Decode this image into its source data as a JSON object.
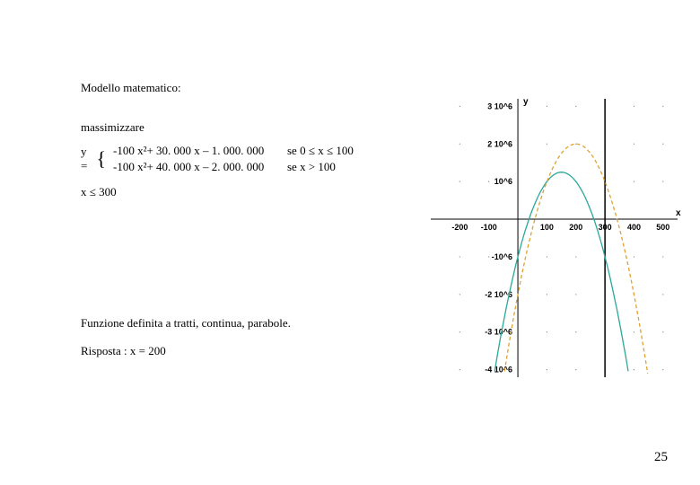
{
  "page_number": "25",
  "title": "Modello matematico:",
  "subtitle": "massimizzare",
  "equation": {
    "lhs": "y =",
    "lines": [
      {
        "expr": "-100 x²+ 30. 000 x – 1. 000. 000",
        "cond": "se 0 ≤ x ≤ 100"
      },
      {
        "expr": "-100 x²+ 40. 000 x – 2. 000. 000",
        "cond": "se x > 100"
      }
    ]
  },
  "constraint": "x ≤ 300",
  "description": "Funzione definita a tratti, continua, parabole.",
  "answer": " Risposta : x = 200",
  "chart": {
    "type": "line",
    "background_color": "#ffffff",
    "axis_color": "#000000",
    "grid_dot_color": "#808080",
    "x_label": "x",
    "y_label": "y",
    "xlim": [
      -300,
      550
    ],
    "ylim": [
      -4200000,
      3200000
    ],
    "x_ticks": [
      -200,
      -100,
      100,
      200,
      300,
      400,
      500
    ],
    "x_tick_labels": [
      "-200",
      "-100",
      "100",
      "200",
      "300",
      "400",
      "500"
    ],
    "y_ticks": [
      3000000,
      2000000,
      1000000,
      -1000000,
      -2000000,
      -3000000,
      -4000000
    ],
    "y_tick_labels": [
      "3 10^6",
      "2 10^6",
      "10^6",
      "-10^6",
      "-2 10^6",
      "-3 10^6",
      "-4 10^6"
    ],
    "vline_x": 300,
    "vline_color": "#000000",
    "series": [
      {
        "color": "#2aa89a",
        "stroke_width": 1.3,
        "a": -100,
        "b": 30000,
        "c": -1000000,
        "x_from": -150,
        "x_to": 450
      },
      {
        "color": "#e0a030",
        "stroke_width": 1.3,
        "dash": "4,3",
        "a": -100,
        "b": 40000,
        "c": -2000000,
        "x_from": -100,
        "x_to": 550
      }
    ]
  }
}
